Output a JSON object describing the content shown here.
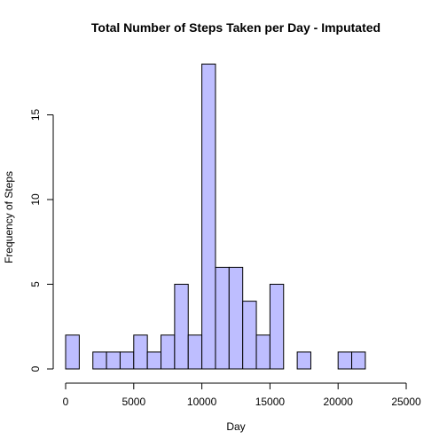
{
  "chart_data": {
    "type": "bar",
    "title": "Total Number of Steps Taken per Day - Imputated",
    "xlabel": "Day",
    "ylabel": "Frequency of Steps",
    "bin_width": 1000,
    "x_range": [
      0,
      25000
    ],
    "xlim": [
      0,
      25000
    ],
    "ylim": [
      0,
      18
    ],
    "x_ticks": [
      0,
      5000,
      10000,
      15000,
      20000,
      25000
    ],
    "y_ticks": [
      0,
      5,
      10,
      15
    ],
    "bar_color": "#bebeff",
    "grid": false,
    "bins": [
      {
        "start": 0,
        "end": 1000,
        "count": 2
      },
      {
        "start": 1000,
        "end": 2000,
        "count": 0
      },
      {
        "start": 2000,
        "end": 3000,
        "count": 1
      },
      {
        "start": 3000,
        "end": 4000,
        "count": 1
      },
      {
        "start": 4000,
        "end": 5000,
        "count": 1
      },
      {
        "start": 5000,
        "end": 6000,
        "count": 2
      },
      {
        "start": 6000,
        "end": 7000,
        "count": 1
      },
      {
        "start": 7000,
        "end": 8000,
        "count": 2
      },
      {
        "start": 8000,
        "end": 9000,
        "count": 5
      },
      {
        "start": 9000,
        "end": 10000,
        "count": 2
      },
      {
        "start": 10000,
        "end": 11000,
        "count": 18
      },
      {
        "start": 11000,
        "end": 12000,
        "count": 6
      },
      {
        "start": 12000,
        "end": 13000,
        "count": 6
      },
      {
        "start": 13000,
        "end": 14000,
        "count": 4
      },
      {
        "start": 14000,
        "end": 15000,
        "count": 2
      },
      {
        "start": 15000,
        "end": 16000,
        "count": 5
      },
      {
        "start": 16000,
        "end": 17000,
        "count": 0
      },
      {
        "start": 17000,
        "end": 18000,
        "count": 1
      },
      {
        "start": 18000,
        "end": 19000,
        "count": 0
      },
      {
        "start": 19000,
        "end": 20000,
        "count": 0
      },
      {
        "start": 20000,
        "end": 21000,
        "count": 1
      },
      {
        "start": 21000,
        "end": 22000,
        "count": 1
      }
    ]
  }
}
